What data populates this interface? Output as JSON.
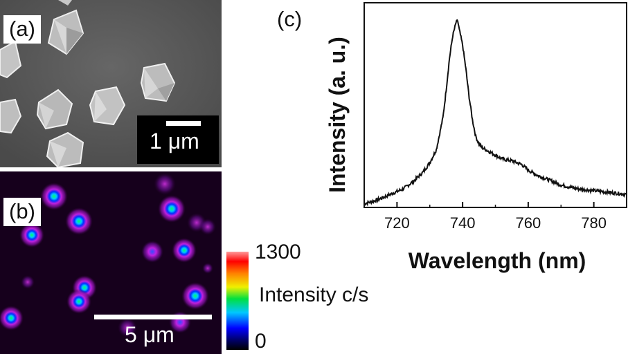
{
  "panel_a": {
    "label": "(a)",
    "scale_bar": "1 μm"
  },
  "panel_b": {
    "label": "(b)",
    "scale_bar": "5 μm",
    "colorbar": {
      "max": "1300",
      "min": "0",
      "title": "Intensity c/s"
    }
  },
  "panel_c": {
    "label": "(c)"
  },
  "chart_data": {
    "type": "line",
    "title": "",
    "xlabel": "Wavelength (nm)",
    "ylabel": "Intensity (a. u.)",
    "xlim": [
      710,
      790
    ],
    "ylim": [
      0,
      1.0
    ],
    "xticks": [
      720,
      740,
      760,
      780
    ],
    "series": [
      {
        "x": [
          710,
          714,
          718,
          722,
          725,
          728,
          730,
          732,
          734,
          735,
          736,
          737,
          738,
          738.5,
          739,
          740,
          741,
          742,
          743,
          744,
          745,
          746,
          748,
          750,
          752,
          755,
          758,
          760,
          763,
          766,
          770,
          775,
          780,
          785,
          790
        ],
        "y": [
          0.02,
          0.04,
          0.07,
          0.1,
          0.14,
          0.19,
          0.24,
          0.31,
          0.48,
          0.63,
          0.8,
          0.92,
          0.99,
          1.0,
          0.95,
          0.87,
          0.74,
          0.59,
          0.47,
          0.38,
          0.34,
          0.32,
          0.3,
          0.28,
          0.26,
          0.25,
          0.23,
          0.2,
          0.17,
          0.15,
          0.12,
          0.1,
          0.09,
          0.08,
          0.07
        ]
      }
    ]
  }
}
